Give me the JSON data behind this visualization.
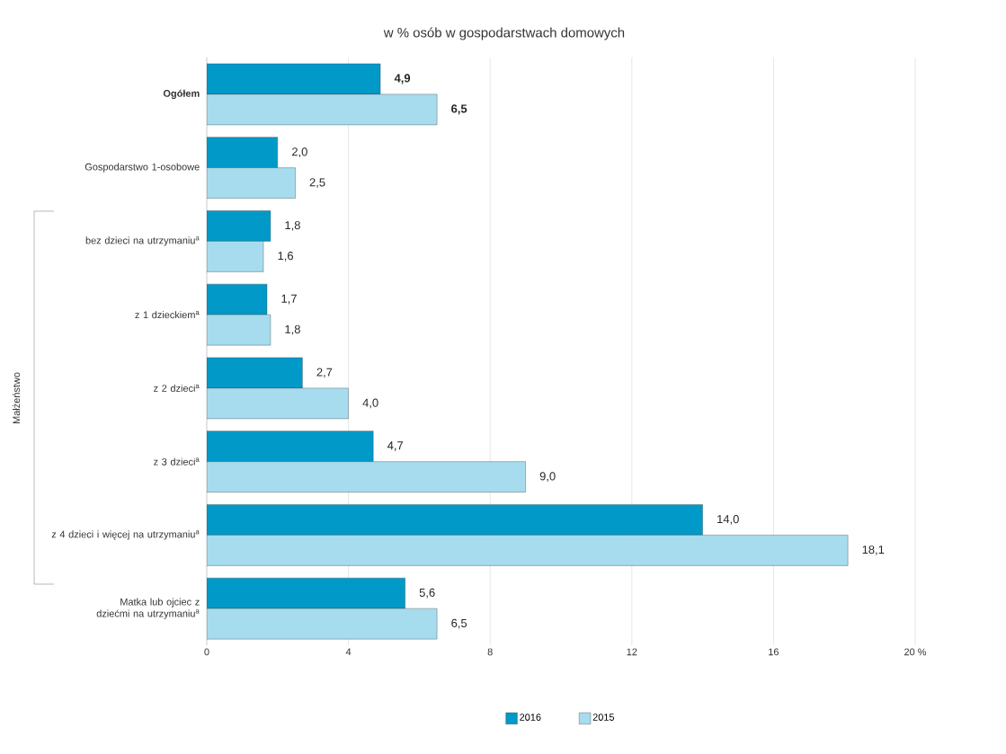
{
  "chart_data": {
    "type": "bar",
    "orientation": "horizontal",
    "title": "w % osób w gospodarstwach domowych",
    "categories": [
      "Ogółem",
      "Gospodarstwo 1-osobowe",
      "bez dzieci na utrzymaniu$^{a}$",
      "z 1 dzieckiem$^{a}$",
      "z 2 dzieci$^{a}$",
      "z 3 dzieci$^{a}$",
      "z 4 dzieci i więcej na utrzymaniu$^{a}$",
      "Matka lub ojciec z dziećmi na utrzymaniu$^{a}$"
    ],
    "series": [
      {
        "name": "2016",
        "color": "#0099c8",
        "values": [
          4.9,
          2.0,
          1.8,
          1.7,
          2.7,
          4.7,
          14.0,
          5.6
        ],
        "value_labels": [
          "4,9",
          "2,0",
          "1,8",
          "1,7",
          "2,7",
          "4,7",
          "14,0",
          "5,6"
        ]
      },
      {
        "name": "2015",
        "color": "#a6dcee",
        "values": [
          6.5,
          2.5,
          1.6,
          1.8,
          4.0,
          9.0,
          18.1,
          6.5
        ],
        "value_labels": [
          "6,5",
          "2,5",
          "1,6",
          "1,8",
          "4,0",
          "9,0",
          "18,1",
          "6,5"
        ]
      }
    ],
    "xlim": [
      0,
      20
    ],
    "xticks": [
      0,
      4,
      8,
      12,
      16,
      {
        "value": 20,
        "label": "20  %"
      }
    ],
    "annotations": [
      "Małżeństwo"
    ],
    "grid": "x",
    "legend": "bottom"
  }
}
